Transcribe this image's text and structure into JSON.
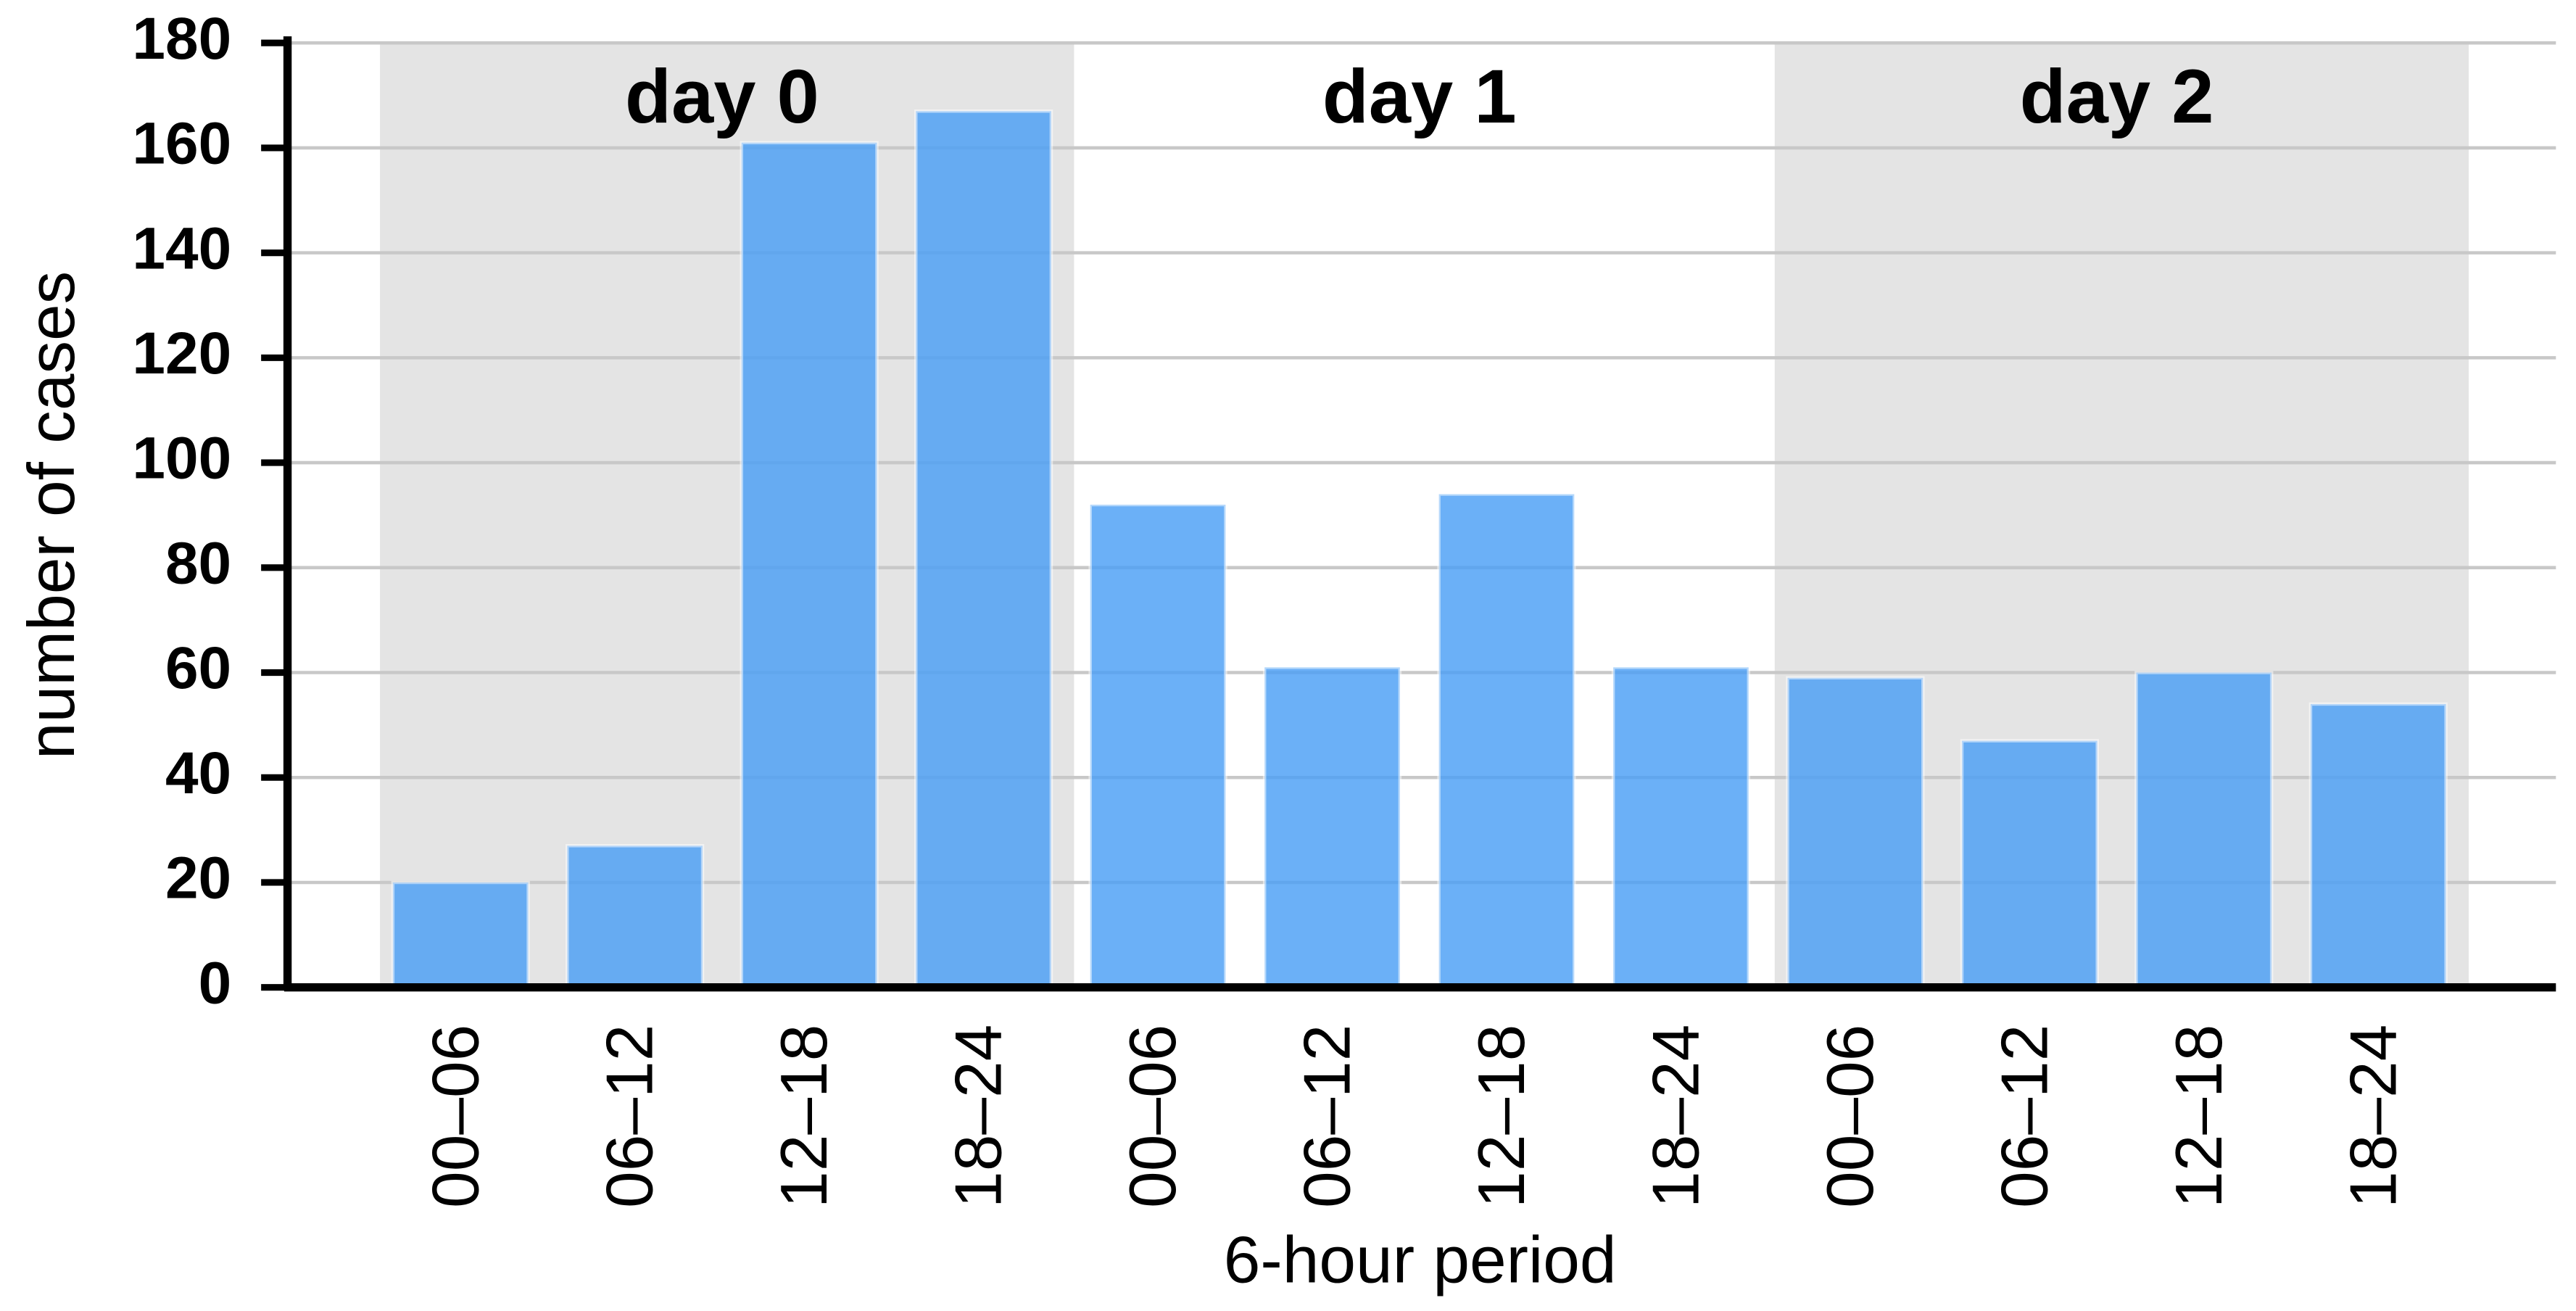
{
  "chart_data": {
    "type": "bar",
    "ylabel": "number of cases",
    "xlabel": "6-hour period",
    "color": "#4a9ff5",
    "groups": [
      {
        "label": "day 0",
        "shaded": true,
        "categories": [
          "00–06",
          "06–12",
          "12–18",
          "18–24"
        ],
        "values": [
          20,
          27,
          161,
          167
        ]
      },
      {
        "label": "day 1",
        "shaded": false,
        "categories": [
          "00–06",
          "06–12",
          "12–18",
          "18–24"
        ],
        "values": [
          92,
          61,
          94,
          61
        ]
      },
      {
        "label": "day 2",
        "shaded": true,
        "categories": [
          "00–06",
          "06–12",
          "12–18",
          "18–24"
        ],
        "values": [
          59,
          47,
          60,
          54
        ]
      }
    ],
    "ylim": [
      0,
      180
    ],
    "yticks": [
      0,
      20,
      40,
      60,
      80,
      100,
      120,
      140,
      160,
      180
    ],
    "grid": true
  }
}
